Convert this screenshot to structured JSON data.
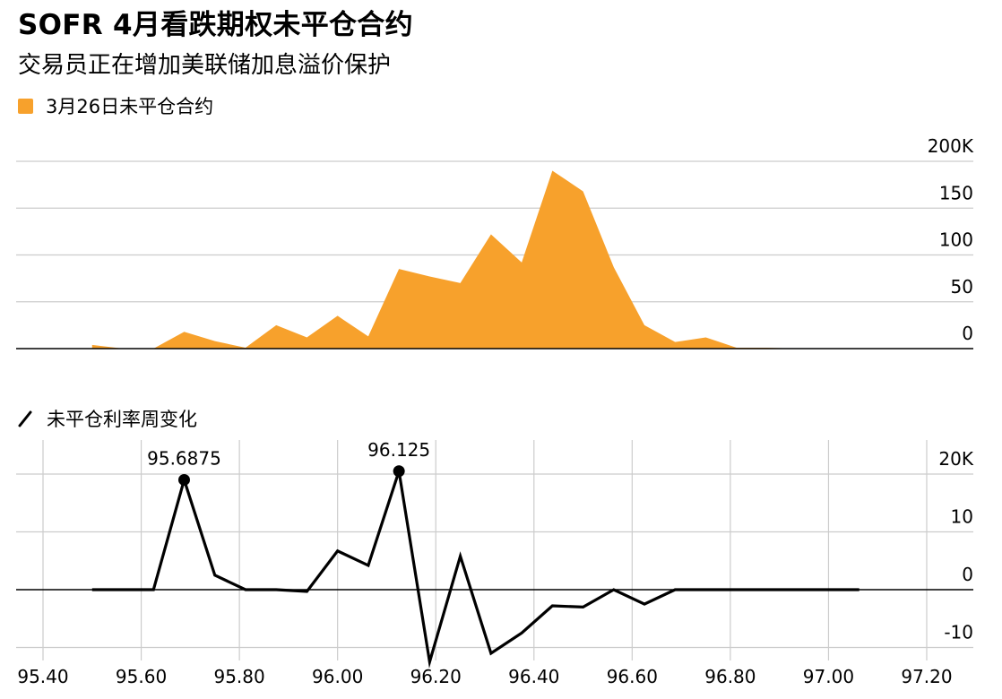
{
  "title": "SOFR 4月看跌期权未平仓合约",
  "subtitle": "交易员正在增加美联储加息溢价保护",
  "colors": {
    "area": "#f7a12c",
    "line": "#000000",
    "grid": "#cccccc",
    "zero": "#000000"
  },
  "chart_data": [
    {
      "type": "area",
      "series": [
        {
          "name": "3月26日未平仓合约",
          "values": [
            4,
            0,
            0,
            18,
            8,
            1,
            25,
            12,
            35,
            13,
            85,
            77,
            70,
            122,
            92,
            190,
            168,
            87,
            25,
            7,
            12,
            1,
            1,
            0,
            0,
            0,
            0,
            0,
            0
          ]
        }
      ],
      "x": [
        95.5,
        95.5625,
        95.625,
        95.6875,
        95.75,
        95.8125,
        95.875,
        95.9375,
        96.0,
        96.0625,
        96.125,
        96.1875,
        96.25,
        96.3125,
        96.375,
        96.4375,
        96.5,
        96.5625,
        96.625,
        96.6875,
        96.75,
        96.8125,
        96.875,
        96.9375,
        97.0,
        97.0625,
        97.125,
        97.1875,
        97.25
      ],
      "ylim": [
        0,
        200
      ],
      "y_ticks": [
        "0",
        "50",
        "100",
        "150",
        "200K"
      ],
      "y_tick_values": [
        0,
        50,
        100,
        150,
        200
      ],
      "grid": true,
      "y_axis_side": "right"
    },
    {
      "type": "line",
      "series": [
        {
          "name": "未平仓利率周变化",
          "values": [
            0,
            0,
            0,
            19,
            2.5,
            0,
            0,
            -0.3,
            6.7,
            4.2,
            20.5,
            -12.5,
            5.8,
            -11,
            -7.5,
            -2.8,
            -3,
            0,
            -2.5,
            0,
            0,
            0,
            0,
            0,
            0,
            0,
            0
          ]
        }
      ],
      "x": [
        95.5,
        95.5625,
        95.625,
        95.6875,
        95.75,
        95.8125,
        95.875,
        95.9375,
        96.0,
        96.0625,
        96.125,
        96.1875,
        96.25,
        96.3125,
        96.375,
        96.4375,
        96.5,
        96.5625,
        96.625,
        96.6875,
        96.75,
        96.8125,
        96.875,
        96.9375,
        97.0,
        97.0625,
        97.0625
      ],
      "ylim": [
        -12,
        25
      ],
      "y_ticks": [
        "-10",
        "0",
        "10",
        "20K"
      ],
      "y_tick_values": [
        -10,
        0,
        10,
        20
      ],
      "xlim": [
        95.4,
        97.2
      ],
      "x_ticks": [
        "95.40",
        "95.60",
        "95.80",
        "96.00",
        "96.20",
        "96.40",
        "96.60",
        "96.80",
        "97.00",
        "97.20"
      ],
      "x_tick_values": [
        95.4,
        95.6,
        95.8,
        96.0,
        96.2,
        96.4,
        96.6,
        96.8,
        97.0,
        97.2
      ],
      "annotations": [
        {
          "x": 95.6875,
          "y": 19,
          "label": "95.6875"
        },
        {
          "x": 96.125,
          "y": 20.5,
          "label": "96.125"
        }
      ],
      "grid": true,
      "y_axis_side": "right"
    }
  ]
}
